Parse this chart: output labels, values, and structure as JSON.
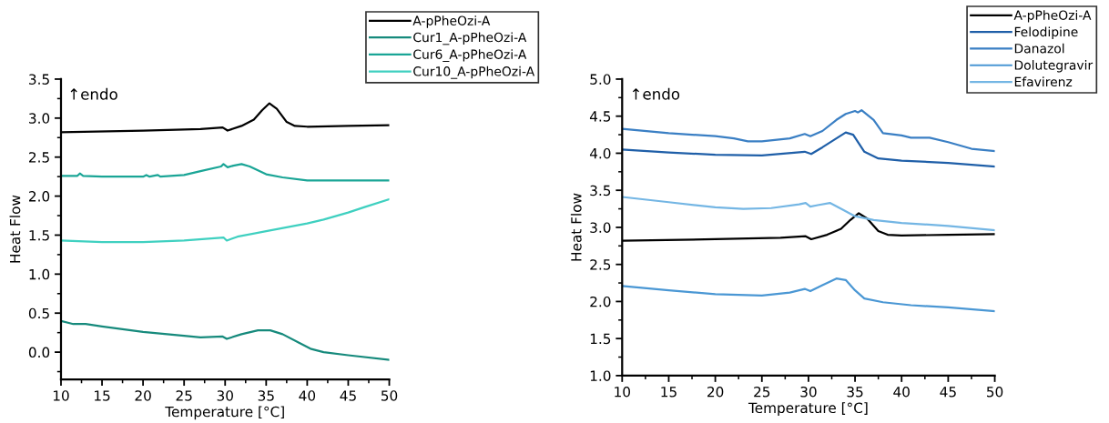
{
  "chart_data": [
    {
      "type": "line",
      "xlabel": "Temperature [°C]",
      "ylabel": "Heat Flow",
      "annotations": [
        "↑endo"
      ],
      "xlim": [
        10,
        50
      ],
      "ylim": [
        -0.35,
        3.5
      ],
      "xticks": [
        10,
        15,
        20,
        25,
        30,
        35,
        40,
        45,
        50
      ],
      "yticks": [
        {
          "value": 0,
          "label": "0.0"
        },
        0.5,
        {
          "value": 1,
          "label": "1.0"
        },
        1.5,
        {
          "value": 2,
          "label": "2.0"
        },
        2.5,
        {
          "value": 3,
          "label": "3.0"
        },
        3.5
      ],
      "grid": false,
      "legend": "top right",
      "marker": "none",
      "line_style": "solid",
      "series": [
        {
          "name": "A-pPheOzi-A",
          "color": "#000000",
          "x": [
            10,
            20,
            27,
            29.7,
            30.3,
            32,
            33.5,
            34.5,
            35.4,
            36.3,
            37.5,
            38.5,
            40,
            45,
            50
          ],
          "values": [
            2.82,
            2.84,
            2.86,
            2.88,
            2.84,
            2.9,
            2.98,
            3.1,
            3.19,
            3.12,
            2.95,
            2.9,
            2.89,
            2.9,
            2.91
          ]
        },
        {
          "name": "Cur1_A-pPheOzi-A",
          "color": "#168a7c",
          "x": [
            10,
            11.5,
            13,
            15,
            20,
            25,
            27,
            29.7,
            30.2,
            32,
            34,
            35.5,
            37,
            39,
            40.5,
            42,
            45,
            50
          ],
          "values": [
            0.4,
            0.36,
            0.36,
            0.33,
            0.26,
            0.21,
            0.19,
            0.2,
            0.17,
            0.23,
            0.28,
            0.28,
            0.23,
            0.12,
            0.04,
            0.0,
            -0.04,
            -0.1
          ]
        },
        {
          "name": "Cur6_A-pPheOzi-A",
          "color": "#1aa596",
          "x": [
            10,
            12,
            12.3,
            12.7,
            15,
            20,
            20.4,
            20.8,
            21.8,
            22.1,
            25,
            27,
            29.5,
            29.8,
            30.3,
            31,
            32,
            33,
            35,
            37,
            40,
            45,
            50
          ],
          "values": [
            2.26,
            2.26,
            2.29,
            2.26,
            2.25,
            2.25,
            2.27,
            2.25,
            2.27,
            2.25,
            2.27,
            2.32,
            2.38,
            2.41,
            2.37,
            2.39,
            2.41,
            2.38,
            2.28,
            2.24,
            2.2,
            2.2,
            2.2
          ]
        },
        {
          "name": "Cur10_A-pPheOzi-A",
          "color": "#3fd0c0",
          "x": [
            10,
            15,
            20,
            25,
            29.8,
            30.2,
            31.5,
            35,
            40,
            42,
            45,
            47,
            50
          ],
          "values": [
            1.43,
            1.41,
            1.41,
            1.43,
            1.47,
            1.43,
            1.48,
            1.55,
            1.65,
            1.7,
            1.79,
            1.86,
            1.96
          ]
        }
      ]
    },
    {
      "type": "line",
      "xlabel": "Temperature [°C]",
      "ylabel": "Heat Flow",
      "annotations": [
        "↑endo"
      ],
      "xlim": [
        10,
        50
      ],
      "ylim": [
        1.0,
        5.0
      ],
      "xticks": [
        10,
        15,
        20,
        25,
        30,
        35,
        40,
        45,
        50
      ],
      "yticks": [
        {
          "value": 1,
          "label": "1.0"
        },
        1.5,
        {
          "value": 2,
          "label": "2.0"
        },
        2.5,
        {
          "value": 3,
          "label": "3.0"
        },
        3.5,
        {
          "value": 4,
          "label": "4.0"
        },
        4.5,
        {
          "value": 5,
          "label": "5.0"
        }
      ],
      "grid": false,
      "legend": "top right",
      "marker": "none",
      "line_style": "solid",
      "series": [
        {
          "name": "A-pPheOzi-A",
          "color": "#000000",
          "x": [
            10,
            20,
            27,
            29.7,
            30.3,
            32,
            33.5,
            34.5,
            35.4,
            36.3,
            37.5,
            38.5,
            40,
            45,
            50
          ],
          "values": [
            2.82,
            2.84,
            2.86,
            2.88,
            2.84,
            2.9,
            2.98,
            3.1,
            3.19,
            3.12,
            2.95,
            2.9,
            2.89,
            2.9,
            2.91
          ]
        },
        {
          "name": "Felodipine",
          "color": "#1f5fa8",
          "x": [
            10,
            15,
            20,
            25,
            29.6,
            30.3,
            31.5,
            33,
            34,
            34.8,
            36,
            37.5,
            40,
            45,
            50
          ],
          "values": [
            4.05,
            4.01,
            3.98,
            3.97,
            4.02,
            3.99,
            4.08,
            4.2,
            4.28,
            4.25,
            4.02,
            3.93,
            3.9,
            3.87,
            3.82
          ]
        },
        {
          "name": "Danazol",
          "color": "#3a7fc4",
          "x": [
            10,
            15,
            20,
            22,
            23.5,
            25,
            28,
            29.6,
            30.2,
            31.5,
            33,
            34,
            35,
            35.3,
            35.7,
            37,
            38,
            40,
            41,
            43,
            45,
            47.5,
            50
          ],
          "values": [
            4.33,
            4.27,
            4.23,
            4.2,
            4.16,
            4.16,
            4.2,
            4.26,
            4.23,
            4.3,
            4.45,
            4.53,
            4.57,
            4.55,
            4.58,
            4.45,
            4.27,
            4.24,
            4.21,
            4.21,
            4.15,
            4.06,
            4.03
          ]
        },
        {
          "name": "Dolutegravir",
          "color": "#4a97d4",
          "x": [
            10,
            15,
            20,
            25,
            28,
            29.6,
            30.2,
            31.5,
            33,
            34,
            35,
            36,
            38,
            41,
            45,
            50
          ],
          "values": [
            2.21,
            2.15,
            2.1,
            2.08,
            2.12,
            2.17,
            2.14,
            2.22,
            2.31,
            2.29,
            2.15,
            2.04,
            1.99,
            1.95,
            1.92,
            1.87
          ]
        },
        {
          "name": "Efavirenz",
          "color": "#74b6e4",
          "x": [
            10,
            15,
            20,
            23,
            26,
            29,
            29.7,
            30.2,
            31,
            32.3,
            33.5,
            35,
            37,
            40,
            45,
            50
          ],
          "values": [
            3.41,
            3.34,
            3.27,
            3.25,
            3.26,
            3.31,
            3.33,
            3.28,
            3.3,
            3.33,
            3.25,
            3.15,
            3.1,
            3.06,
            3.02,
            2.96
          ]
        }
      ]
    }
  ]
}
